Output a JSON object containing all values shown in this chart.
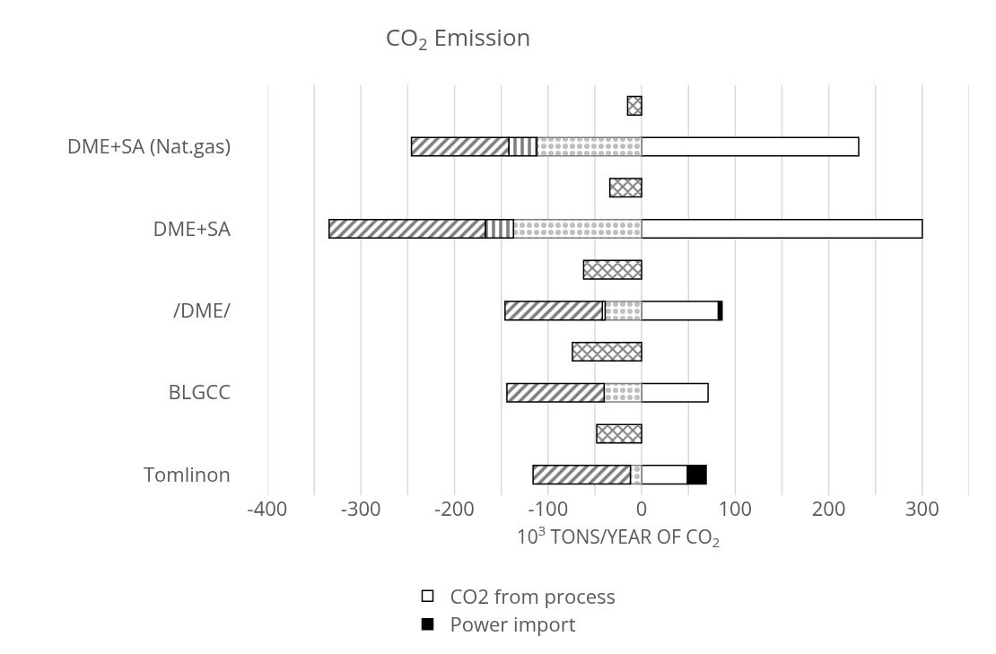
{
  "chart_data": {
    "type": "bar",
    "orientation": "horizontal",
    "stacked": true,
    "title": "CO$_{2}$ Emission",
    "xlabel": "10$^{3}$ TONS/YEAR OF CO$_{2}$",
    "categories": [
      null,
      "DME+SA (Nat.gas)",
      null,
      "DME+SA",
      null,
      "/DME/",
      null,
      "BLGCC",
      null,
      "Tomlinon"
    ],
    "series": [
      {
        "name": "CO2 from process",
        "color": "#ffffff",
        "values": [
          null,
          232,
          null,
          300,
          null,
          82,
          null,
          71,
          null,
          49
        ]
      },
      {
        "name": "Power import",
        "color": "#000000",
        "values": [
          null,
          null,
          null,
          null,
          null,
          4,
          null,
          null,
          null,
          20
        ]
      },
      {
        "color": "#7f7f7f",
        "values": [
          null,
          -112,
          null,
          -137,
          null,
          -39,
          null,
          -40,
          null,
          -12
        ]
      },
      {
        "color": "#000000",
        "values": [
          null,
          -30,
          null,
          -30,
          null,
          -3,
          null,
          null,
          null,
          null
        ]
      },
      {
        "color": "#000000",
        "values": [
          null,
          -104,
          null,
          -167,
          null,
          -104,
          null,
          -104,
          null,
          -104
        ]
      },
      {
        "color": "#000000",
        "values": [
          -15,
          null,
          -34,
          null,
          -62,
          null,
          -74,
          null,
          -48,
          null
        ]
      }
    ],
    "xlim": [
      -400,
      350
    ],
    "xticks": [
      -400,
      {
        "value": -350,
        "label": null
      },
      -300,
      {
        "value": -250,
        "label": null
      },
      -200,
      {
        "value": -150,
        "label": null
      },
      -100,
      {
        "value": -50,
        "label": null
      },
      0,
      {
        "value": 50,
        "label": null
      },
      100,
      {
        "value": 150,
        "label": null
      },
      200,
      {
        "value": 250,
        "label": null
      },
      300,
      {
        "value": 350,
        "label": null
      }
    ],
    "grid": "x",
    "legend": "bottom"
  }
}
